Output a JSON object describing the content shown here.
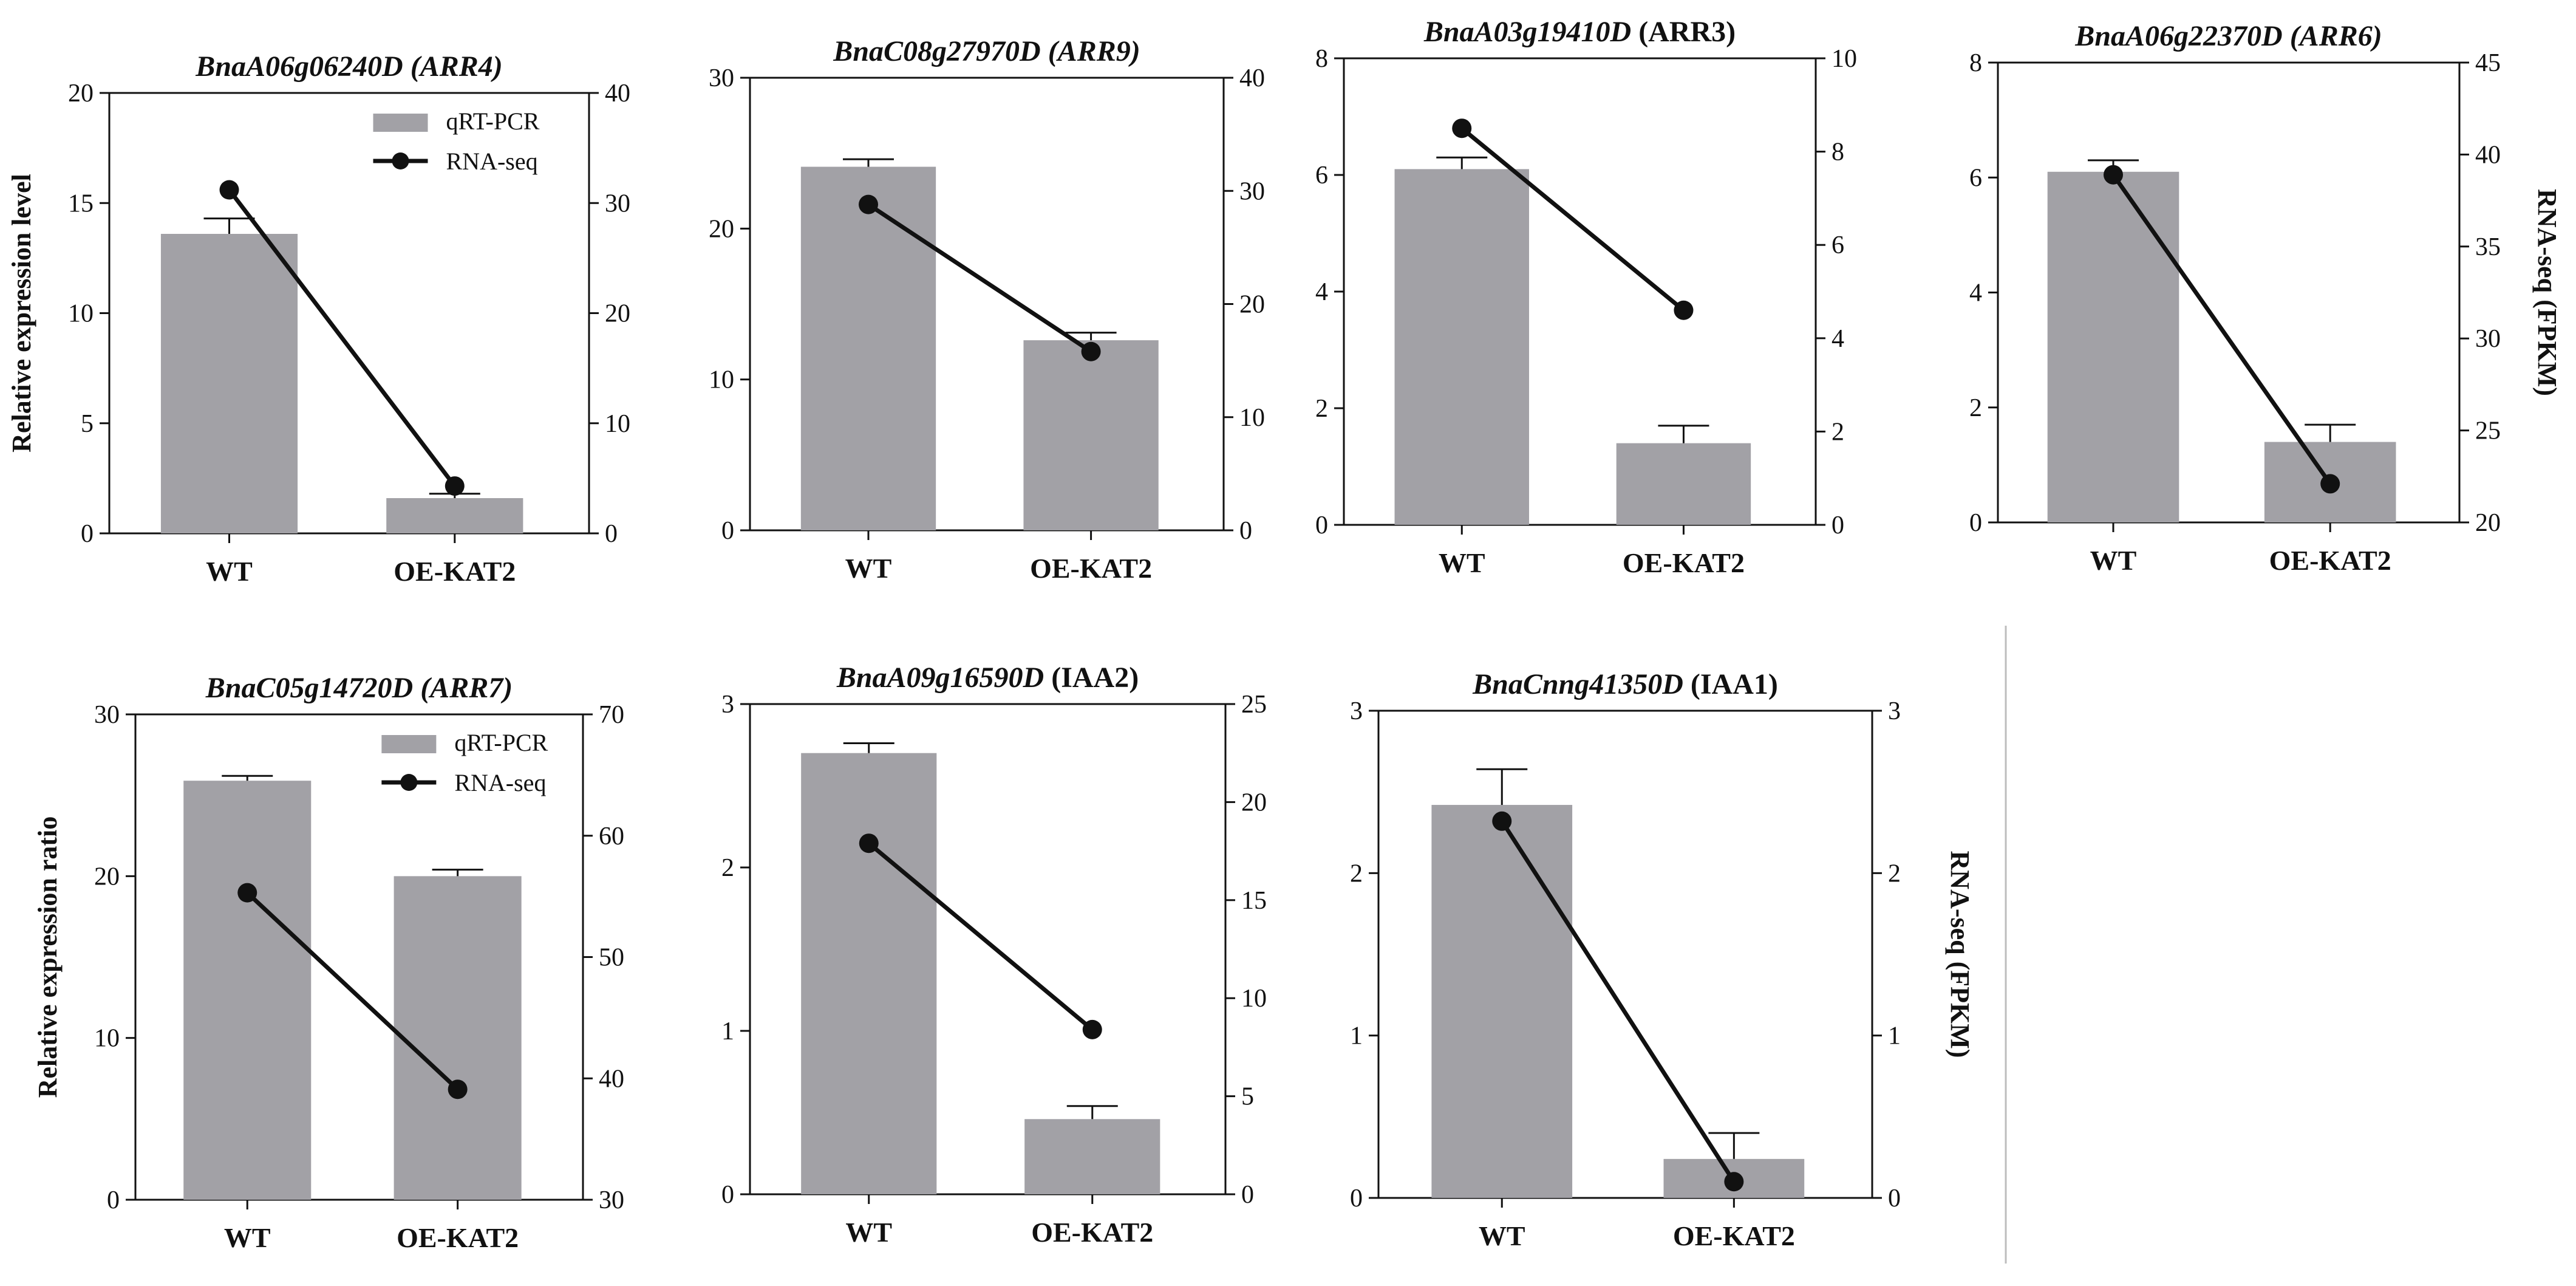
{
  "figure": {
    "categories": [
      "WT",
      "OE-KAT2"
    ],
    "legend": {
      "bar_label": "qRT-PCR",
      "line_label": "RNA-seq"
    },
    "colors": {
      "bar": "#a2a1a6",
      "line": "#111111"
    }
  },
  "chart_data": [
    {
      "type": "bar",
      "title_gene": "BnaA06g06240D",
      "title_suffix": "(ARR4)",
      "suffix_italic": true,
      "categories": [
        "WT",
        "OE-KAT2"
      ],
      "series": [
        {
          "name": "qRT-PCR",
          "axis": "left",
          "values": [
            13.6,
            1.6
          ],
          "errors": [
            0.7,
            0.2
          ]
        },
        {
          "name": "RNA-seq",
          "axis": "right",
          "values": [
            31.2,
            4.3
          ]
        }
      ],
      "ylabel_left": "Relative expression level",
      "ylabel_right": "",
      "ylim_left": [
        0,
        20
      ],
      "yticks_left": [
        0,
        5,
        10,
        15,
        20
      ],
      "ylim_right": [
        0,
        40
      ],
      "yticks_right": [
        0,
        10,
        20,
        30,
        40
      ],
      "legend": true
    },
    {
      "type": "bar",
      "title_gene": "BnaC08g27970D",
      "title_suffix": "(ARR9)",
      "suffix_italic": true,
      "categories": [
        "WT",
        "OE-KAT2"
      ],
      "series": [
        {
          "name": "qRT-PCR",
          "axis": "left",
          "values": [
            24.1,
            12.6
          ],
          "errors": [
            0.5,
            0.5
          ]
        },
        {
          "name": "RNA-seq",
          "axis": "right",
          "values": [
            28.8,
            15.8
          ]
        }
      ],
      "ylabel_left": "",
      "ylabel_right": "",
      "ylim_left": [
        0,
        30
      ],
      "yticks_left": [
        0,
        10,
        20,
        30
      ],
      "ylim_right": [
        0,
        40
      ],
      "yticks_right": [
        0,
        10,
        20,
        30,
        40
      ],
      "legend": false
    },
    {
      "type": "bar",
      "title_gene": "BnaA03g19410D",
      "title_suffix": "(ARR3)",
      "suffix_italic": false,
      "categories": [
        "WT",
        "OE-KAT2"
      ],
      "series": [
        {
          "name": "qRT-PCR",
          "axis": "left",
          "values": [
            6.1,
            1.4
          ],
          "errors": [
            0.2,
            0.3
          ]
        },
        {
          "name": "RNA-seq",
          "axis": "right",
          "values": [
            8.5,
            4.6
          ]
        }
      ],
      "ylabel_left": "",
      "ylabel_right": "",
      "ylim_left": [
        0,
        8
      ],
      "yticks_left": [
        0,
        2,
        4,
        6,
        8
      ],
      "ylim_right": [
        0,
        10
      ],
      "yticks_right": [
        0,
        2,
        4,
        6,
        8,
        10
      ],
      "legend": false
    },
    {
      "type": "bar",
      "title_gene": "BnaA06g22370D",
      "title_suffix": "(ARR6)",
      "suffix_italic": true,
      "categories": [
        "WT",
        "OE-KAT2"
      ],
      "series": [
        {
          "name": "qRT-PCR",
          "axis": "left",
          "values": [
            6.1,
            1.4
          ],
          "errors": [
            0.2,
            0.3
          ]
        },
        {
          "name": "RNA-seq",
          "axis": "right",
          "values": [
            38.9,
            22.1
          ]
        }
      ],
      "ylabel_left": "",
      "ylabel_right": "RNA-seq (FPKM)",
      "ylim_left": [
        0,
        8
      ],
      "yticks_left": [
        0,
        2,
        4,
        6,
        8
      ],
      "ylim_right": [
        20,
        45
      ],
      "yticks_right": [
        20,
        25,
        30,
        35,
        40,
        45
      ],
      "legend": false
    },
    {
      "type": "bar",
      "title_gene": "BnaC05g14720D",
      "title_suffix": "(ARR7)",
      "suffix_italic": true,
      "categories": [
        "WT",
        "OE-KAT2"
      ],
      "series": [
        {
          "name": "qRT-PCR",
          "axis": "left",
          "values": [
            25.9,
            20.0
          ],
          "errors": [
            0.3,
            0.4
          ]
        },
        {
          "name": "RNA-seq",
          "axis": "right",
          "values": [
            55.3,
            39.1
          ]
        }
      ],
      "ylabel_left": "Relative expression ratio",
      "ylabel_right": "",
      "ylim_left": [
        0,
        30
      ],
      "yticks_left": [
        0,
        10,
        20,
        30
      ],
      "ylim_right": [
        30,
        70
      ],
      "yticks_right": [
        30,
        40,
        50,
        60,
        70
      ],
      "legend": true
    },
    {
      "type": "bar",
      "title_gene": "BnaA09g16590D",
      "title_suffix": "(IAA2)",
      "suffix_italic": false,
      "categories": [
        "WT",
        "OE-KAT2"
      ],
      "series": [
        {
          "name": "qRT-PCR",
          "axis": "left",
          "values": [
            2.7,
            0.46
          ],
          "errors": [
            0.06,
            0.08
          ]
        },
        {
          "name": "RNA-seq",
          "axis": "right",
          "values": [
            17.9,
            8.4
          ]
        }
      ],
      "ylabel_left": "",
      "ylabel_right": "",
      "ylim_left": [
        0,
        3
      ],
      "yticks_left": [
        0,
        1,
        2,
        3
      ],
      "ylim_right": [
        0,
        25
      ],
      "yticks_right": [
        0,
        5,
        10,
        15,
        20,
        25
      ],
      "legend": false
    },
    {
      "type": "bar",
      "title_gene": "BnaCnng41350D",
      "title_suffix": "(IAA1)",
      "suffix_italic": false,
      "categories": [
        "WT",
        "OE-KAT2"
      ],
      "series": [
        {
          "name": "qRT-PCR",
          "axis": "left",
          "values": [
            2.42,
            0.24
          ],
          "errors": [
            0.22,
            0.16
          ]
        },
        {
          "name": "RNA-seq",
          "axis": "right",
          "values": [
            2.32,
            0.1
          ]
        }
      ],
      "ylabel_left": "",
      "ylabel_right": "RNA-seq (FPKM)",
      "ylim_left": [
        0,
        3
      ],
      "yticks_left": [
        0,
        1,
        2,
        3
      ],
      "ylim_right": [
        0,
        3
      ],
      "yticks_right": [
        0,
        1,
        2,
        3
      ],
      "legend": false
    }
  ]
}
